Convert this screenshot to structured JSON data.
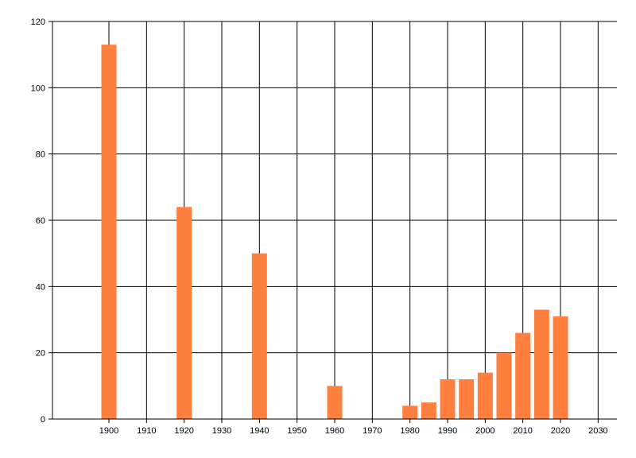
{
  "chart_data": {
    "type": "bar",
    "title": "",
    "xlabel": "",
    "ylabel": "",
    "x": [
      1900,
      1920,
      1940,
      1960,
      1980,
      1985,
      1990,
      1995,
      2000,
      2005,
      2010,
      2015,
      2020
    ],
    "values": [
      113,
      64,
      50,
      10,
      4,
      5,
      12,
      12,
      14,
      20,
      26,
      33,
      31
    ],
    "xlim": [
      1885,
      2035
    ],
    "ylim": [
      0,
      120
    ],
    "x_ticks": [
      "1900",
      "1910",
      "1920",
      "1930",
      "1940",
      "1950",
      "1960",
      "1970",
      "1980",
      "1990",
      "2000",
      "2010",
      "2020",
      "2030"
    ],
    "y_ticks": [
      "0",
      "20",
      "40",
      "60",
      "80",
      "100",
      "120"
    ],
    "grid": true,
    "bar_color": "#ff7f3f",
    "grid_color": "#000000"
  }
}
